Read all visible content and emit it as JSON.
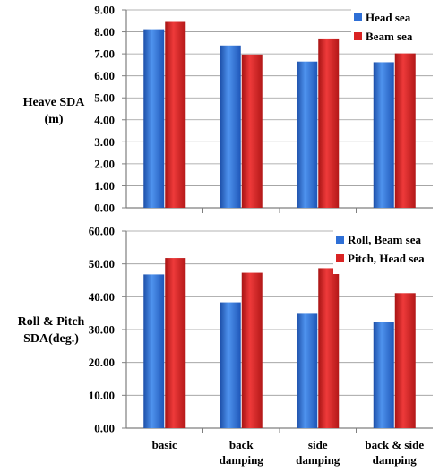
{
  "colors": {
    "series1": "#2e6fd6",
    "series2": "#d92323",
    "grid": "#9a9a9a",
    "axis": "#7f7f7f"
  },
  "chart_data": [
    {
      "type": "bar",
      "categories": [
        "basic",
        "back damping",
        "side damping",
        "back & side damping"
      ],
      "series": [
        {
          "name": "Head sea",
          "values": [
            8.12,
            7.38,
            6.65,
            6.62
          ]
        },
        {
          "name": "Beam sea",
          "values": [
            8.45,
            6.97,
            7.7,
            7.02
          ]
        }
      ],
      "ylabel": [
        "Heave SDA",
        "(m)"
      ],
      "ylim": [
        0,
        9
      ],
      "yticks": [
        "0.00",
        "1.00",
        "2.00",
        "3.00",
        "4.00",
        "5.00",
        "6.00",
        "7.00",
        "8.00",
        "9.00"
      ],
      "grid": true,
      "legend": "top-right"
    },
    {
      "type": "bar",
      "categories": [
        "basic",
        "back damping",
        "side damping",
        "back & side damping"
      ],
      "category_lines": [
        [
          "basic"
        ],
        [
          "back",
          "damping"
        ],
        [
          "side",
          "damping"
        ],
        [
          "back & side",
          "damping"
        ]
      ],
      "series": [
        {
          "name": "Roll, Beam sea",
          "values": [
            46.8,
            38.3,
            34.8,
            32.3
          ]
        },
        {
          "name": "Pitch, Head sea",
          "values": [
            51.8,
            47.3,
            48.7,
            41.1
          ]
        }
      ],
      "ylabel": [
        "Roll & Pitch",
        "SDA(deg.)"
      ],
      "ylim": [
        0,
        60
      ],
      "yticks": [
        "0.00",
        "10.00",
        "20.00",
        "30.00",
        "40.00",
        "50.00",
        "60.00"
      ],
      "grid": true,
      "legend": "top-right"
    }
  ]
}
